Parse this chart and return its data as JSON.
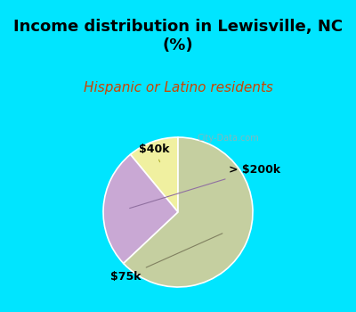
{
  "title": "Income distribution in Lewisville, NC\n(%)",
  "subtitle": "Hispanic or Latino residents",
  "slices": [
    {
      "label": "$40k",
      "value": 11,
      "color": "#f0f0a0"
    },
    {
      "label": "> $200k",
      "value": 26,
      "color": "#c9a8d4"
    },
    {
      "label": "$75k",
      "value": 63,
      "color": "#c5cfa0"
    }
  ],
  "background_top": "#00e5ff",
  "background_chart": "#e0f0e8",
  "title_color": "#000000",
  "subtitle_color": "#cc4400",
  "watermark": "City-Data.com",
  "start_angle": 90,
  "label_fontsize": 9,
  "title_fontsize": 13,
  "subtitle_fontsize": 11
}
